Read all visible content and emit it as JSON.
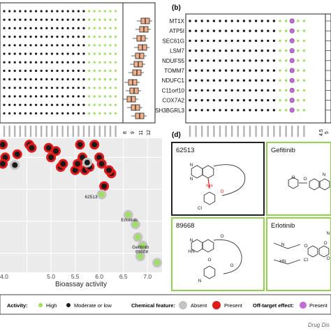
{
  "panels": {
    "b_label": "(b)",
    "d_label": "(d)"
  },
  "panel_b": {
    "genes": [
      "MT1X",
      "ATP5I",
      "SEC61G",
      "LSM7",
      "NDUFS5",
      "TOMM7",
      "NDUFC1",
      "C11orf10",
      "COX7A2",
      "SH3BGRL3"
    ]
  },
  "panel_a": {
    "axis_ticks": [
      "8",
      "9",
      "11",
      "12"
    ]
  },
  "panel_b_axis": {
    "ticks": [
      "4.5",
      "5"
    ]
  },
  "chart_data": {
    "type": "scatter",
    "xlabel": "Bioassay activity",
    "x_ticks": [
      "4.0",
      "5.0",
      "5.5",
      "6.0",
      "6.5",
      "7.0"
    ],
    "xlim": [
      4.0,
      7.3
    ],
    "series": [
      {
        "kind": "present_moderate",
        "points": [
          [
            4.0,
            6.2
          ],
          [
            4.05,
            6.0
          ],
          [
            4.3,
            6.05
          ],
          [
            4.55,
            6.2
          ],
          [
            4.6,
            6.15
          ],
          [
            4.95,
            6.15
          ],
          [
            5.0,
            6.0
          ],
          [
            5.1,
            6.1
          ],
          [
            5.2,
            5.85
          ],
          [
            5.25,
            5.9
          ],
          [
            5.5,
            5.8
          ],
          [
            5.55,
            5.9
          ],
          [
            5.65,
            6.0
          ],
          [
            5.7,
            5.8
          ],
          [
            5.8,
            5.85
          ],
          [
            5.9,
            6.2
          ],
          [
            6.0,
            6.0
          ],
          [
            6.2,
            5.8
          ],
          [
            6.25,
            5.75
          ],
          [
            6.05,
            5.9
          ],
          [
            5.6,
            6.2
          ],
          [
            4.0,
            5.9
          ],
          [
            6.1,
            5.55
          ],
          [
            6.2,
            5.8
          ]
        ]
      },
      {
        "kind": "absent_moderate",
        "points": [
          [
            4.25,
            5.88
          ],
          [
            5.75,
            5.92
          ]
        ]
      },
      {
        "kind": "absent_high",
        "points": [
          [
            6.05,
            5.42
          ],
          [
            6.6,
            5.1
          ],
          [
            6.75,
            4.95
          ],
          [
            6.8,
            4.75
          ],
          [
            6.9,
            4.62
          ],
          [
            6.85,
            4.45
          ],
          [
            7.2,
            4.35
          ]
        ]
      }
    ],
    "annotations": [
      "62513",
      "Erlotinib",
      "Gefitinib",
      "89668"
    ]
  },
  "panel_d": {
    "compounds": [
      "62513",
      "Gefitinib",
      "89668",
      "Erlotinib"
    ],
    "atom_labels": [
      "N",
      "N",
      "NH",
      "O",
      "Cl",
      "O",
      "O",
      "N",
      "N",
      "HN",
      "O",
      "O",
      "O",
      "N",
      "N",
      "HN",
      "O",
      "Cl",
      "O",
      "O",
      "N"
    ]
  },
  "legend": {
    "activity_label": "Activity:",
    "high_label": "High",
    "moderate_label": "Moderate or low",
    "chemical_label": "Chemical feature:",
    "absent_label": "Absent",
    "present_label": "Present",
    "offtarget_label": "Off-target effect:",
    "offtarget_present_label": "Present"
  },
  "footer": {
    "credit": "Drug Dis"
  },
  "colors": {
    "high_green": "#9be25a",
    "black": "#1a1a1a",
    "absent_grey": "#c4c4c4",
    "present_red": "#e01a1a",
    "purple": "#c26ad6",
    "panel_bg": "#ebebeb",
    "box_green": "#8fd44a"
  }
}
